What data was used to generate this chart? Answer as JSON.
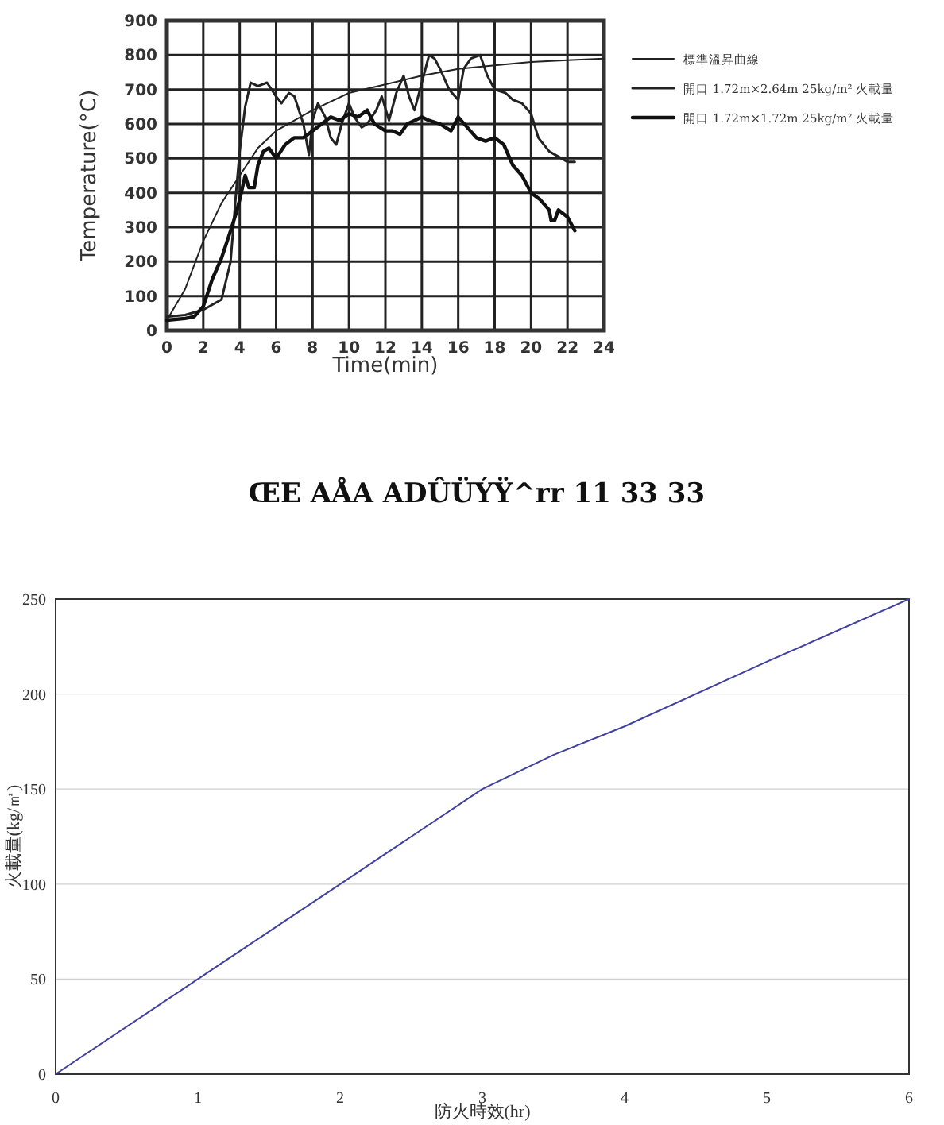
{
  "chart_data": [
    {
      "type": "line",
      "xlabel": "Time(min)",
      "ylabel": "Temperature(°C)",
      "xlim": [
        0,
        24
      ],
      "ylim": [
        0,
        900
      ],
      "xticks": [
        0,
        2,
        4,
        6,
        8,
        10,
        12,
        14,
        16,
        18,
        20,
        22,
        24
      ],
      "yticks": [
        0,
        100,
        200,
        300,
        400,
        500,
        600,
        700,
        800,
        900
      ],
      "grid": true,
      "legend": "right",
      "annotations": [
        "ŒE AÅA ADÛÜÝŸ^rr 11 33 33"
      ],
      "series": [
        {
          "name": "標準溫昇曲線",
          "color": "#222222",
          "x": [
            0,
            1,
            2,
            3,
            4,
            5,
            6,
            7,
            8,
            9,
            10,
            12,
            14,
            16,
            18,
            20,
            22,
            24
          ],
          "values": [
            30,
            120,
            260,
            370,
            450,
            530,
            580,
            610,
            640,
            665,
            690,
            715,
            740,
            760,
            770,
            780,
            785,
            790
          ]
        },
        {
          "name": "開口 1.72m×2.64m 25kg/m² 火載量",
          "color": "#222222",
          "x": [
            0,
            1,
            2,
            3,
            3.5,
            3.8,
            4,
            4.3,
            4.6,
            5,
            5.5,
            6,
            6.3,
            6.7,
            7,
            7.5,
            7.8,
            8,
            8.3,
            8.7,
            9,
            9.3,
            9.6,
            10,
            10.3,
            10.7,
            11,
            11.5,
            11.8,
            12.2,
            12.6,
            13,
            13.3,
            13.6,
            14,
            14.4,
            14.7,
            15,
            15.5,
            16,
            16.3,
            16.7,
            17.2,
            17.6,
            18,
            18.6,
            19,
            19.5,
            20,
            20.4,
            21,
            22,
            22.4
          ],
          "values": [
            40,
            45,
            60,
            90,
            200,
            400,
            520,
            650,
            720,
            710,
            720,
            680,
            660,
            690,
            680,
            600,
            510,
            610,
            660,
            620,
            560,
            540,
            600,
            660,
            620,
            590,
            600,
            640,
            680,
            610,
            690,
            740,
            680,
            640,
            720,
            800,
            790,
            760,
            700,
            670,
            760,
            790,
            800,
            740,
            700,
            690,
            670,
            660,
            630,
            560,
            520,
            490,
            490
          ]
        },
        {
          "name": "開口 1.72m×1.72m 25kg/m² 火載量",
          "color": "#111111",
          "x": [
            0,
            1,
            1.5,
            2,
            2.5,
            3,
            3.5,
            3.8,
            4,
            4.3,
            4.5,
            4.8,
            5,
            5.3,
            5.6,
            6,
            6.5,
            7,
            7.5,
            8,
            8.5,
            9,
            9.5,
            10,
            10.5,
            11,
            11.4,
            12,
            12.4,
            12.8,
            13.2,
            13.6,
            14,
            14.4,
            15,
            15.6,
            16,
            16.5,
            17,
            17.5,
            18,
            18.5,
            19,
            19.5,
            20,
            20.5,
            21,
            21.1,
            21.3,
            21.5,
            22,
            22.4
          ],
          "values": [
            30,
            35,
            40,
            70,
            150,
            210,
            290,
            340,
            380,
            450,
            415,
            415,
            480,
            520,
            530,
            500,
            540,
            560,
            560,
            580,
            600,
            620,
            610,
            630,
            620,
            640,
            600,
            580,
            580,
            570,
            600,
            610,
            620,
            610,
            600,
            580,
            620,
            590,
            560,
            550,
            560,
            540,
            480,
            450,
            400,
            380,
            350,
            320,
            320,
            350,
            330,
            290
          ]
        }
      ]
    },
    {
      "type": "line",
      "xlabel": "防火時效(hr)",
      "ylabel": "火載量(kg/㎡)",
      "xlim": [
        0,
        6
      ],
      "ylim": [
        0,
        250
      ],
      "xticks": [
        0,
        1,
        2,
        3,
        4,
        5,
        6
      ],
      "yticks": [
        0,
        50,
        100,
        150,
        200,
        250
      ],
      "grid": "y",
      "legend": false,
      "series": [
        {
          "color": "#4040a0",
          "x": [
            0,
            1,
            2,
            2.5,
            3,
            3.5,
            4,
            5,
            6
          ],
          "values": [
            0,
            50,
            100,
            125,
            150,
            168,
            183,
            217,
            250
          ]
        }
      ]
    }
  ]
}
